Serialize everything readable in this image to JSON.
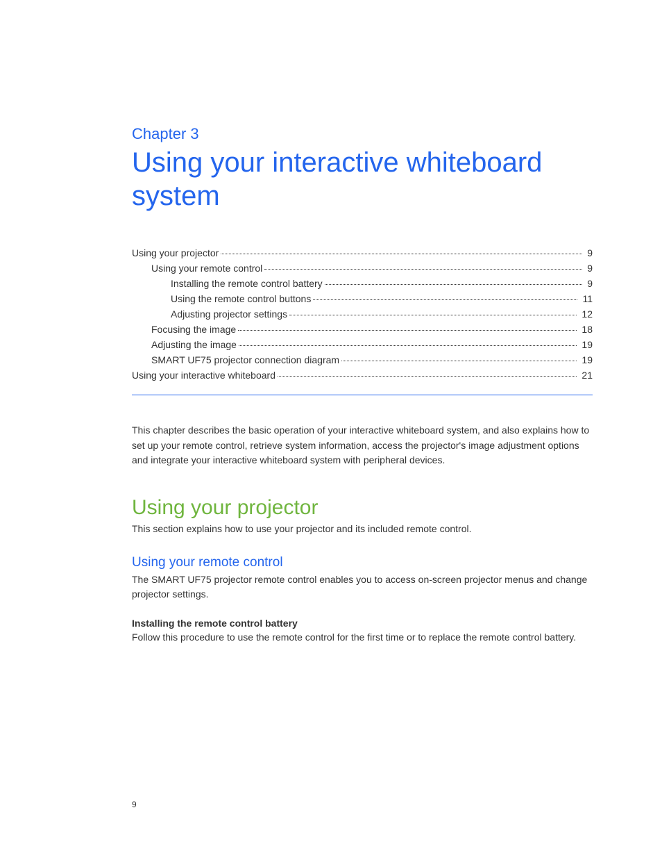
{
  "colors": {
    "heading_blue": "#2465ed",
    "section_green": "#6fb53e",
    "body_text": "#333333",
    "divider": "#2465ed"
  },
  "chapter": {
    "label": "Chapter 3",
    "title": "Using your interactive whiteboard system"
  },
  "toc": {
    "items": [
      {
        "label": "Using your projector",
        "page": "9",
        "indent": 0
      },
      {
        "label": "Using your remote control",
        "page": "9",
        "indent": 1
      },
      {
        "label": "Installing the remote control battery",
        "page": "9",
        "indent": 2
      },
      {
        "label": "Using the remote control buttons",
        "page": "11",
        "indent": 2
      },
      {
        "label": "Adjusting projector settings",
        "page": "12",
        "indent": 2
      },
      {
        "label": "Focusing the image",
        "page": "18",
        "indent": 1
      },
      {
        "label": "Adjusting the image",
        "page": "19",
        "indent": 1
      },
      {
        "label": "SMART UF75 projector connection diagram",
        "page": "19",
        "indent": 1
      },
      {
        "label": "Using your interactive whiteboard",
        "page": "21",
        "indent": 0
      }
    ]
  },
  "intro_paragraph": "This chapter describes the basic operation of your interactive whiteboard system, and also explains how to set up your remote control, retrieve system information, access the projector's image adjustment options and integrate your interactive whiteboard system with peripheral devices.",
  "section1": {
    "heading": "Using your projector",
    "body": "This section explains how to use your projector and its included remote control."
  },
  "subsection1": {
    "heading": "Using your remote control",
    "body": "The SMART UF75 projector remote control enables you to access on-screen projector menus and change projector settings."
  },
  "subsubsection1": {
    "heading": "Installing the remote control battery",
    "body": "Follow this procedure to use the remote control for the first time or to replace the remote control battery."
  },
  "page_number": "9"
}
